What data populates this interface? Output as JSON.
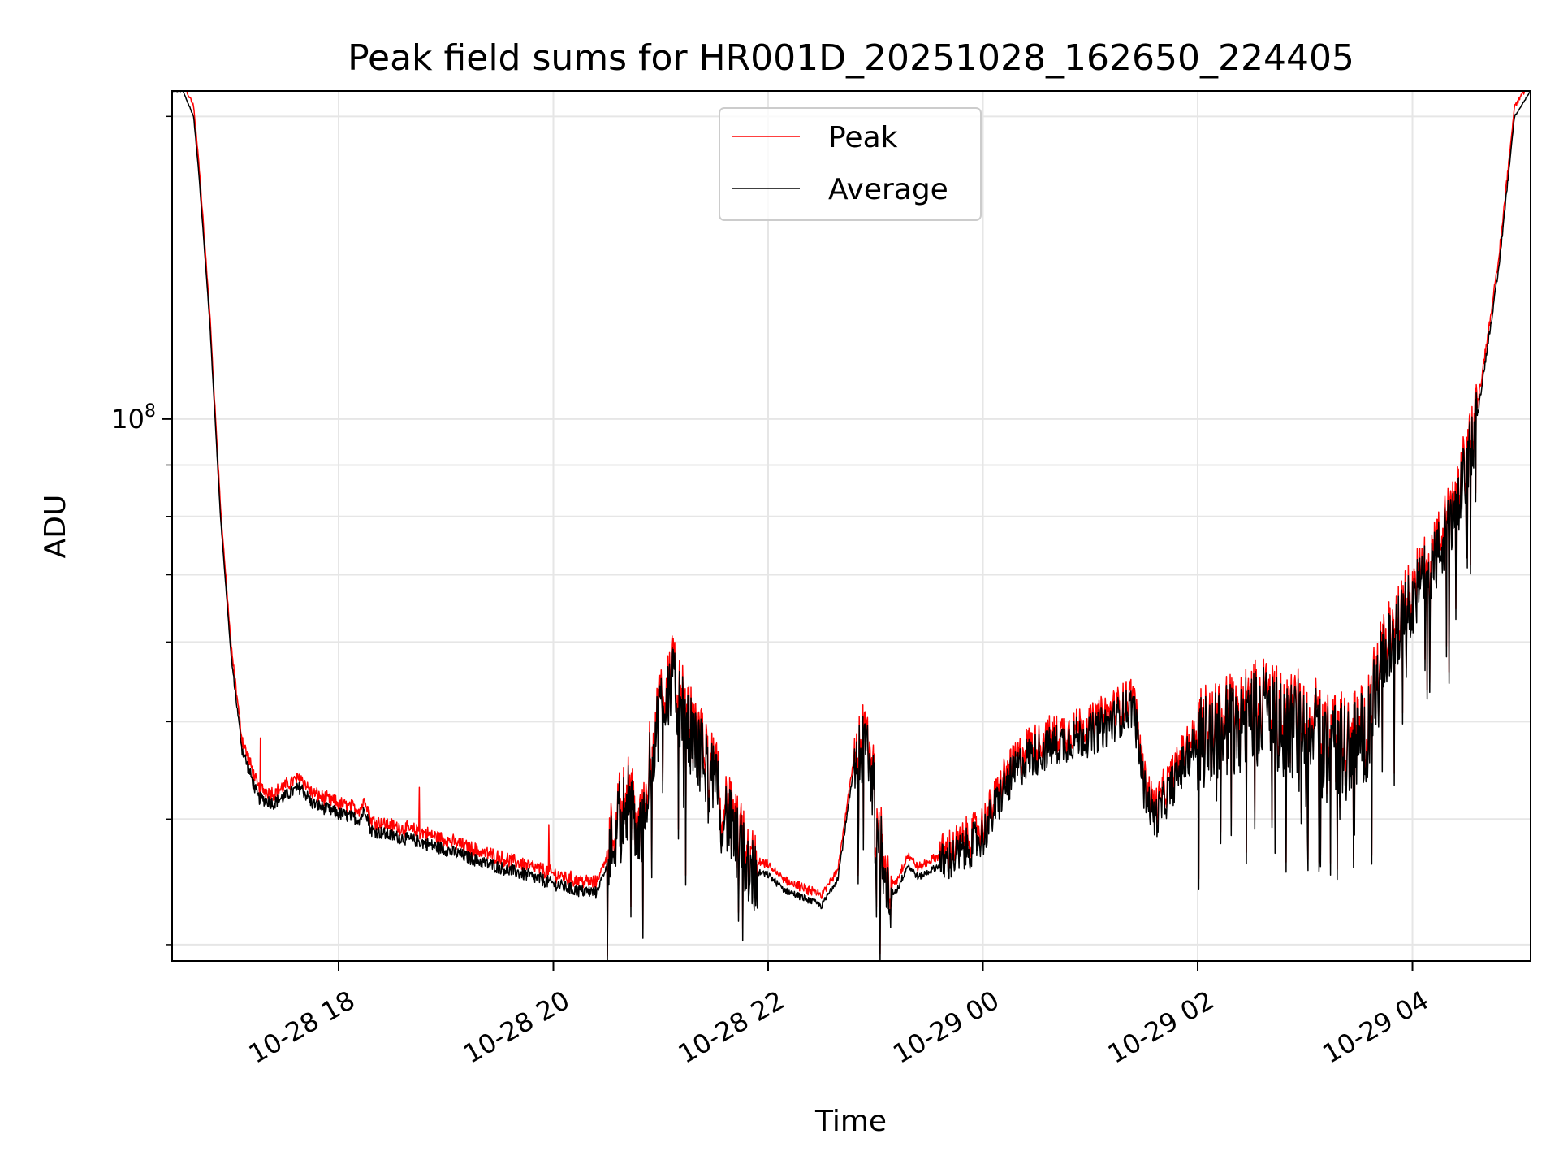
{
  "chart_data": {
    "type": "line",
    "title": "Peak field sums for HR001D_20251028_162650_224405",
    "xlabel": "Time",
    "ylabel": "ADU",
    "y_scale": "log",
    "ylim": [
      28900000,
      212000000
    ],
    "xlim_hours": [
      16.45,
      29.1
    ],
    "grid": true,
    "legend_position": "top-center",
    "x_ticks": [
      {
        "hour": 18,
        "label": "10-28 18"
      },
      {
        "hour": 20,
        "label": "10-28 20"
      },
      {
        "hour": 22,
        "label": "10-28 22"
      },
      {
        "hour": 24,
        "label": "10-29 00"
      },
      {
        "hour": 26,
        "label": "10-29 02"
      },
      {
        "hour": 28,
        "label": "10-29 04"
      }
    ],
    "y_major_ticks": [
      {
        "value": 100000000,
        "base": "10",
        "exp": "8"
      }
    ],
    "y_minor_ticks": [
      30000000,
      40000000,
      50000000,
      60000000,
      70000000,
      80000000,
      90000000,
      200000000
    ],
    "series": [
      {
        "name": "Peak",
        "color": "#ff0000"
      },
      {
        "name": "Average",
        "color": "#000000"
      }
    ],
    "average_trend": {
      "x_hours": [
        16.45,
        16.55,
        16.65,
        16.7,
        16.8,
        16.9,
        17.0,
        17.1,
        17.25,
        17.4,
        17.55,
        17.65,
        17.75,
        18.0,
        18.2,
        18.25,
        18.3,
        18.5,
        18.75,
        19.0,
        19.25,
        19.5,
        19.75,
        20.0,
        20.2,
        20.4,
        20.5,
        20.6,
        20.7,
        20.8,
        20.9,
        21.0,
        21.1,
        21.2,
        21.3,
        21.4,
        21.55,
        21.7,
        21.85,
        22.0,
        22.15,
        22.3,
        22.5,
        22.65,
        22.8,
        22.9,
        23.0,
        23.1,
        23.2,
        23.3,
        23.4,
        23.6,
        23.8,
        24.0,
        24.2,
        24.4,
        24.6,
        24.8,
        25.0,
        25.2,
        25.4,
        25.5,
        25.6,
        25.8,
        26.0,
        26.2,
        26.4,
        26.6,
        26.8,
        27.0,
        27.2,
        27.4,
        27.6,
        27.7,
        27.8,
        27.9,
        28.0,
        28.2,
        28.4,
        28.6,
        28.8,
        28.95,
        29.1
      ],
      "values_millions": [
        212,
        212,
        200,
        175,
        125,
        80,
        58,
        47,
        42,
        41.5,
        42.5,
        43,
        41.5,
        40.5,
        40,
        41,
        39,
        38.5,
        38,
        37.3,
        36.5,
        35.8,
        35.2,
        34.5,
        34.0,
        33.8,
        36,
        40,
        42,
        38,
        45,
        52,
        55,
        51,
        48,
        46,
        42,
        38,
        35.5,
        35.2,
        34,
        33.5,
        32.8,
        35,
        45,
        48,
        42,
        33.5,
        34,
        36,
        35,
        36,
        37,
        38.5,
        43,
        46,
        47,
        48,
        48.5,
        50,
        52,
        43,
        40,
        44,
        48,
        49,
        50,
        52,
        49,
        50,
        48,
        47,
        49,
        57,
        60,
        63,
        66,
        72,
        80,
        100,
        140,
        200,
        212
      ]
    }
  },
  "legend": {
    "peak_label": "Peak",
    "average_label": "Average"
  }
}
